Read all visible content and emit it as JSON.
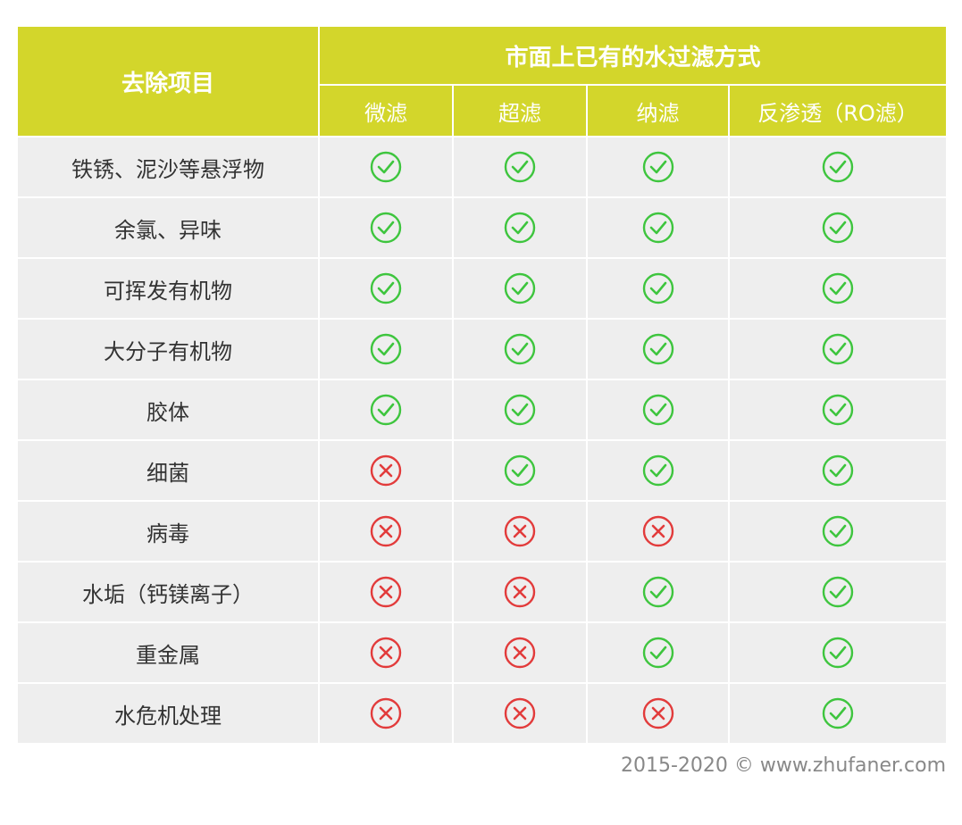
{
  "header": {
    "row_title": "去除项目",
    "group_title": "市面上已有的水过滤方式",
    "columns": [
      "微滤",
      "超滤",
      "纳滤",
      "反渗透（RO滤）"
    ]
  },
  "rows": [
    {
      "label": "铁锈、泥沙等悬浮物",
      "results": [
        true,
        true,
        true,
        true
      ]
    },
    {
      "label": "余氯、异味",
      "results": [
        true,
        true,
        true,
        true
      ]
    },
    {
      "label": "可挥发有机物",
      "results": [
        true,
        true,
        true,
        true
      ]
    },
    {
      "label": "大分子有机物",
      "results": [
        true,
        true,
        true,
        true
      ]
    },
    {
      "label": "胶体",
      "results": [
        true,
        true,
        true,
        true
      ]
    },
    {
      "label": "细菌",
      "results": [
        false,
        true,
        true,
        true
      ]
    },
    {
      "label": "病毒",
      "results": [
        false,
        false,
        false,
        true
      ]
    },
    {
      "label": "水垢（钙镁离子）",
      "results": [
        false,
        false,
        true,
        true
      ]
    },
    {
      "label": "重金属",
      "results": [
        false,
        false,
        true,
        true
      ]
    },
    {
      "label": "水危机处理",
      "results": [
        false,
        false,
        false,
        true
      ]
    }
  ],
  "footer": "2015-2020 © www.zhufaner.com"
}
